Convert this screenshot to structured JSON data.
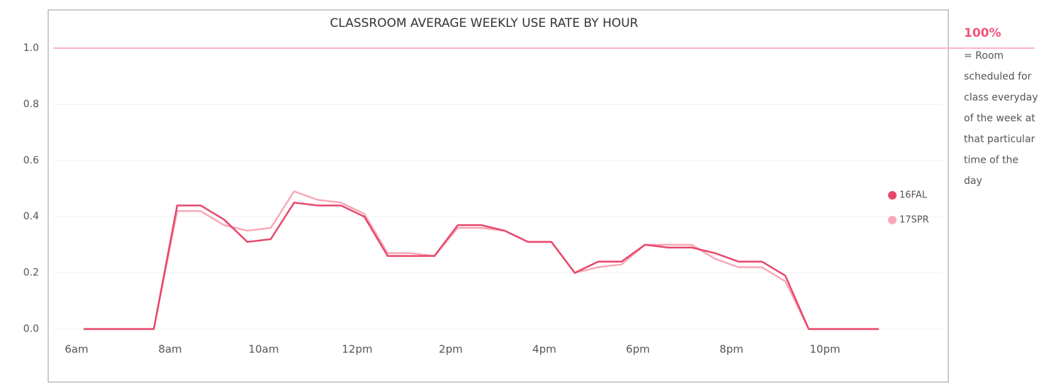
{
  "chart_data": {
    "type": "line",
    "title": "CLASSROOM AVERAGE WEEKLY USE RATE BY HOUR",
    "categories": [
      "6am",
      null,
      null,
      null,
      "8am",
      null,
      null,
      null,
      "10am",
      null,
      null,
      null,
      "12pm",
      null,
      null,
      null,
      "2pm",
      null,
      null,
      null,
      "4pm",
      null,
      null,
      null,
      "6pm",
      null,
      null,
      null,
      "8pm",
      null,
      null,
      null,
      "10pm",
      null,
      null
    ],
    "series": [
      {
        "name": "16FAL",
        "color": "#e8476a",
        "values": [
          0,
          0,
          0,
          0,
          0.44,
          0.44,
          0.39,
          0.31,
          0.32,
          0.45,
          0.44,
          0.44,
          0.4,
          0.26,
          0.26,
          0.26,
          0.37,
          0.37,
          0.35,
          0.31,
          0.31,
          0.2,
          0.24,
          0.24,
          0.3,
          0.29,
          0.29,
          0.27,
          0.24,
          0.24,
          0.19,
          0,
          0,
          0,
          0
        ]
      },
      {
        "name": "17SPR",
        "color": "#f7a8b8",
        "values": [
          0,
          0,
          0,
          0,
          0.42,
          0.42,
          0.37,
          0.35,
          0.36,
          0.49,
          0.46,
          0.45,
          0.41,
          0.27,
          0.27,
          0.26,
          0.36,
          0.36,
          0.35,
          0.31,
          0.31,
          0.2,
          0.22,
          0.23,
          0.3,
          0.3,
          0.3,
          0.25,
          0.22,
          0.22,
          0.17,
          0,
          0,
          0,
          0
        ]
      }
    ],
    "ylim": [
      0,
      1.05
    ],
    "yticks": [
      {
        "value": 0,
        "label": "0.0"
      },
      0.2,
      0.4,
      0.6,
      0.8,
      {
        "value": 1,
        "label": "1.0"
      }
    ],
    "grid": true,
    "legend": "right",
    "reference_value": 1,
    "reference_color": "#f9b5c5",
    "annotation_title": "100%",
    "annotation_lines": [
      "= Room",
      "scheduled for",
      "class everyday",
      "of the week at",
      "that particular",
      "time of the",
      "day"
    ]
  }
}
